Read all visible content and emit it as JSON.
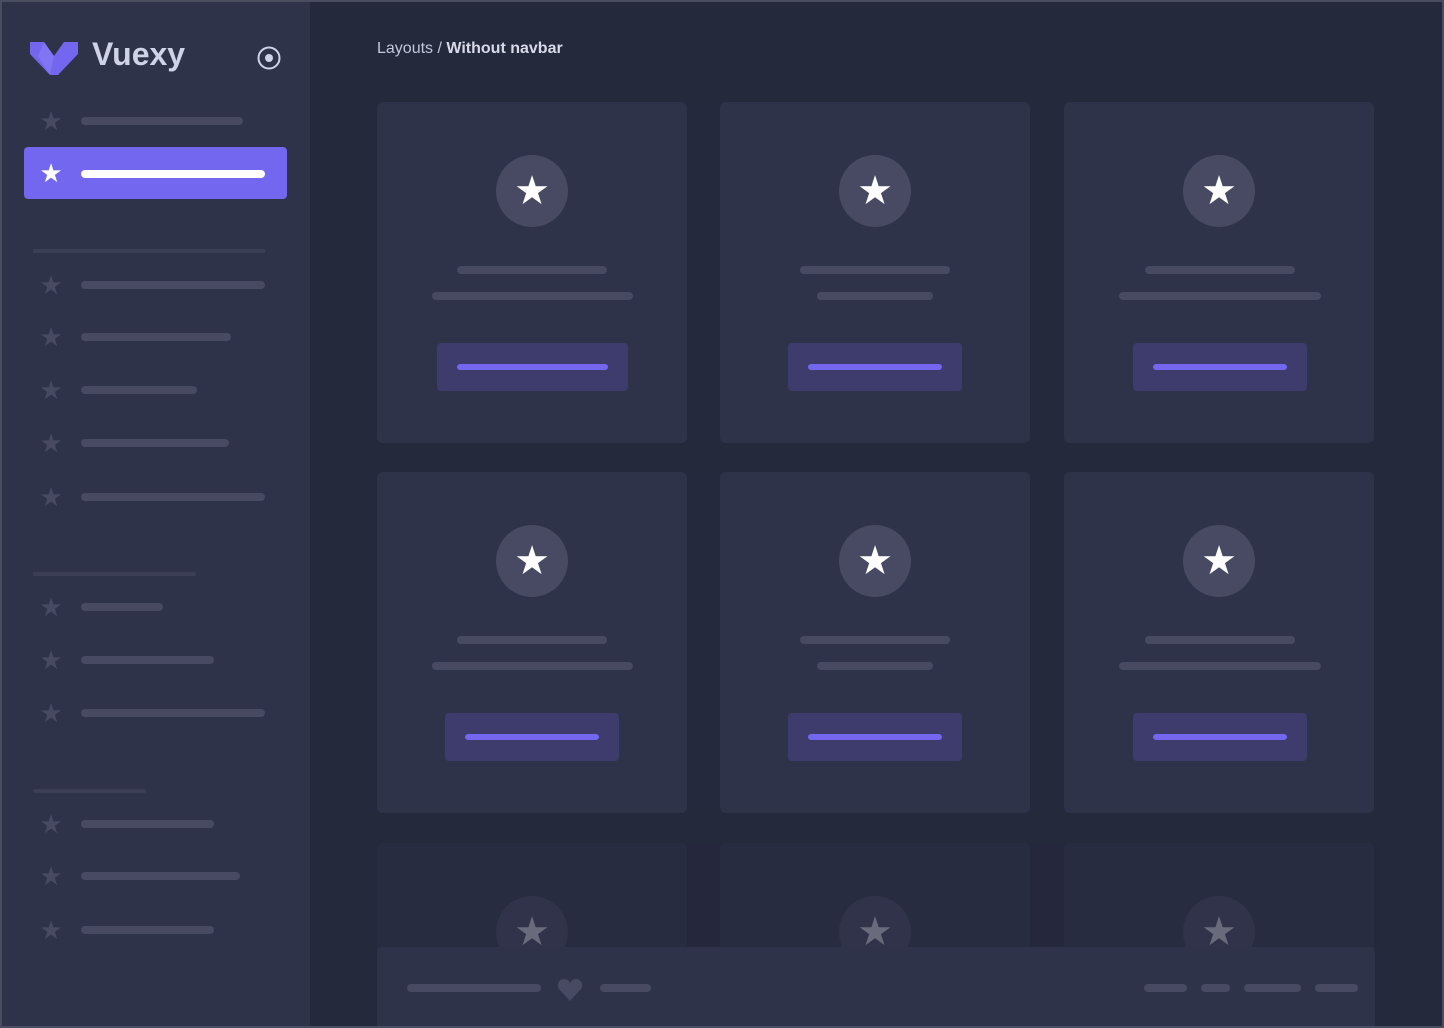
{
  "brand": {
    "name": "Vuexy",
    "logo_icon": "vuexy-logo-icon",
    "toggle_icon": "radio-circle-icon"
  },
  "breadcrumb": {
    "parent": "Layouts",
    "separator": " / ",
    "current": "Without navbar"
  },
  "icons": {
    "nav": "star-icon",
    "card": "star-icon",
    "footer": "heart-icon"
  },
  "colors": {
    "primary": "#7367f0",
    "background": "#25293c",
    "surface": "#2f3349",
    "skeleton": "#474a62"
  }
}
